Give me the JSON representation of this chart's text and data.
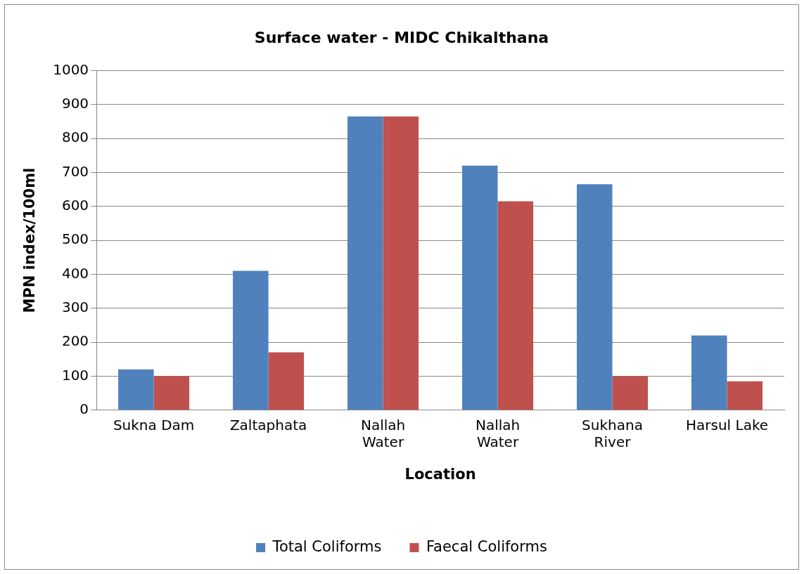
{
  "chart_data": {
    "type": "bar",
    "title": "Surface water - MIDC Chikalthana",
    "xlabel": "Location",
    "ylabel": "MPN index/100ml",
    "categories": [
      "Sukna Dam",
      "Zaltaphata",
      [
        "Nallah",
        "Water"
      ],
      [
        "Nallah",
        "Water"
      ],
      [
        "Sukhana",
        "River"
      ],
      "Harsul Lake"
    ],
    "series": [
      {
        "name": "Total Coliforms",
        "color": "#4f81bd",
        "values": [
          120,
          410,
          865,
          720,
          665,
          220
        ]
      },
      {
        "name": "Faecal Coliforms",
        "color": "#c0504d",
        "values": [
          100,
          170,
          865,
          615,
          100,
          85
        ]
      }
    ],
    "ylim": [
      0,
      1000
    ],
    "yticks": [
      0,
      100,
      200,
      300,
      400,
      500,
      600,
      700,
      800,
      900,
      1000
    ],
    "grid": "y",
    "legend": "bottom"
  }
}
